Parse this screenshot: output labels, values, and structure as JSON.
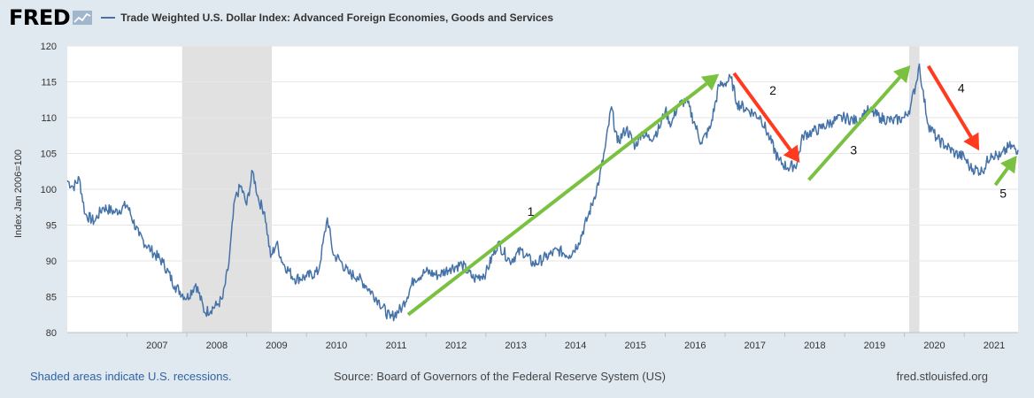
{
  "header": {
    "logo_text": "FRED",
    "series_title": "Trade Weighted U.S. Dollar Index: Advanced Foreign Economies, Goods and Services"
  },
  "colors": {
    "line": "#4572a7",
    "green_arrow": "#7ac142",
    "red_arrow": "#ff3b1f",
    "recession": "#e1e1e1",
    "background": "#e1e9f0"
  },
  "chart_data": {
    "type": "line",
    "ylabel": "Index Jan 2006=100",
    "ylim": [
      80,
      120
    ],
    "xlim": [
      2006.0,
      2021.9
    ],
    "yticks": [
      "80",
      "85",
      "90",
      "95",
      "100",
      "105",
      "110",
      "115",
      "120"
    ],
    "xticks": [
      "2007",
      "2008",
      "2009",
      "2010",
      "2011",
      "2012",
      "2013",
      "2014",
      "2015",
      "2016",
      "2017",
      "2018",
      "2019",
      "2020",
      "2021"
    ],
    "recessions": [
      [
        2007.92,
        2009.42
      ],
      [
        2020.08,
        2020.25
      ]
    ],
    "series": [
      {
        "x": [
          2006.0,
          2006.1,
          2006.2,
          2006.3,
          2006.45,
          2006.6,
          2006.8,
          2007.0,
          2007.2,
          2007.4,
          2007.6,
          2007.8,
          2008.0,
          2008.15,
          2008.3,
          2008.5,
          2008.6,
          2008.7,
          2008.8,
          2008.9,
          2009.0,
          2009.1,
          2009.2,
          2009.3,
          2009.4,
          2009.5,
          2009.6,
          2009.8,
          2010.0,
          2010.2,
          2010.35,
          2010.45,
          2010.55,
          2010.7,
          2010.85,
          2011.0,
          2011.2,
          2011.4,
          2011.6,
          2011.8,
          2012.0,
          2012.2,
          2012.4,
          2012.6,
          2012.8,
          2013.0,
          2013.2,
          2013.4,
          2013.6,
          2013.8,
          2014.0,
          2014.2,
          2014.4,
          2014.55,
          2014.7,
          2014.8,
          2014.9,
          2015.0,
          2015.1,
          2015.2,
          2015.35,
          2015.5,
          2015.6,
          2015.75,
          2015.9,
          2016.0,
          2016.1,
          2016.2,
          2016.35,
          2016.5,
          2016.6,
          2016.75,
          2016.9,
          2017.0,
          2017.1,
          2017.2,
          2017.4,
          2017.6,
          2017.75,
          2017.9,
          2018.05,
          2018.2,
          2018.3,
          2018.45,
          2018.6,
          2018.8,
          2019.0,
          2019.2,
          2019.4,
          2019.6,
          2019.8,
          2020.0,
          2020.1,
          2020.2,
          2020.25,
          2020.3,
          2020.4,
          2020.55,
          2020.7,
          2020.85,
          2021.0,
          2021.1,
          2021.3,
          2021.45,
          2021.6,
          2021.75,
          2021.9
        ],
        "y": [
          101.2,
          100.3,
          101.5,
          96.5,
          95.5,
          97.5,
          96.8,
          97.8,
          93.5,
          91.5,
          89.8,
          86.5,
          84.8,
          86.8,
          82.8,
          83.8,
          84.8,
          89.5,
          98.5,
          100.5,
          97.8,
          102.5,
          98.5,
          96.8,
          90.5,
          92.5,
          89.8,
          87.5,
          87.8,
          88.5,
          96.0,
          90.8,
          90.2,
          88.3,
          87.8,
          86.5,
          84.5,
          82.0,
          83.5,
          87.5,
          88.5,
          88.0,
          89.0,
          89.5,
          87.5,
          88.3,
          92.5,
          90.0,
          91.5,
          89.5,
          90.5,
          91.5,
          90.8,
          92.5,
          96.0,
          98.5,
          101.5,
          106.0,
          111.5,
          106.5,
          108.5,
          106.0,
          108.0,
          107.0,
          108.5,
          111.0,
          109.0,
          111.5,
          112.5,
          109.0,
          106.5,
          108.5,
          114.5,
          114.8,
          115.5,
          112.0,
          111.0,
          110.0,
          107.0,
          104.0,
          103.0,
          103.5,
          107.5,
          108.0,
          108.5,
          109.5,
          110.0,
          109.5,
          111.0,
          110.0,
          109.5,
          110.0,
          111.5,
          115.0,
          117.5,
          114.0,
          109.0,
          107.0,
          106.0,
          105.0,
          104.5,
          103.0,
          102.5,
          105.0,
          104.5,
          106.0,
          105.5
        ]
      }
    ],
    "annotations": [
      {
        "label": "1",
        "color": "green",
        "x": 2013.75,
        "y": 96.3,
        "from": [
          2011.7,
          82.5
        ],
        "to": [
          2016.9,
          116.1
        ]
      },
      {
        "label": "2",
        "color": "red",
        "x": 2017.8,
        "y": 113.2,
        "from": [
          2017.15,
          116.2
        ],
        "to": [
          2018.25,
          103.7
        ]
      },
      {
        "label": "3",
        "color": "green",
        "x": 2019.15,
        "y": 104.9,
        "from": [
          2018.4,
          101.3
        ],
        "to": [
          2020.1,
          117.3
        ]
      },
      {
        "label": "4",
        "color": "red",
        "x": 2020.95,
        "y": 113.5,
        "from": [
          2020.4,
          117.2
        ],
        "to": [
          2021.25,
          105.4
        ]
      },
      {
        "label": "5",
        "color": "green",
        "x": 2021.65,
        "y": 98.8,
        "from": [
          2021.52,
          100.6
        ],
        "to": [
          2021.88,
          104.7
        ]
      }
    ]
  },
  "footer": {
    "recession_note": "Shaded areas indicate U.S. recessions.",
    "source": "Source: Board of Governors of the Federal Reserve System (US)",
    "site": "fred.stlouisfed.org"
  }
}
